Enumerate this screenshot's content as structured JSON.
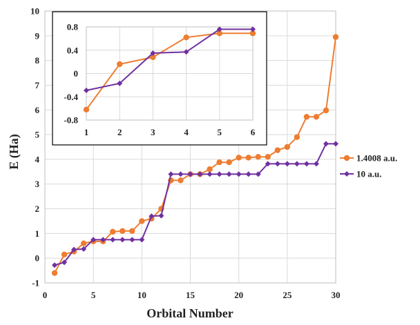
{
  "chart_data": {
    "main": {
      "type": "line",
      "xlabel": "Orbital Number",
      "ylabel": "E (Ha)",
      "xlim": [
        0,
        30
      ],
      "ylim": [
        -1,
        10
      ],
      "xticks": [
        0,
        5,
        10,
        15,
        20,
        25,
        30
      ],
      "yticks": [
        -1,
        0,
        1,
        2,
        3,
        4,
        5,
        6,
        7,
        8,
        9,
        10
      ],
      "grid": true,
      "legend_position": "right",
      "x": [
        1,
        2,
        3,
        4,
        5,
        6,
        7,
        8,
        9,
        10,
        11,
        12,
        13,
        14,
        15,
        16,
        17,
        18,
        19,
        20,
        21,
        22,
        23,
        24,
        25,
        26,
        27,
        28,
        29,
        30
      ],
      "series": [
        {
          "name": "1.4008 a.u.",
          "color": "#ED7D31",
          "marker": "circle",
          "values": [
            -0.6,
            0.15,
            0.27,
            0.6,
            0.68,
            0.68,
            1.07,
            1.1,
            1.1,
            1.5,
            1.6,
            2.0,
            3.15,
            3.15,
            3.4,
            3.4,
            3.6,
            3.88,
            3.88,
            4.07,
            4.07,
            4.1,
            4.1,
            4.37,
            4.5,
            4.9,
            5.72,
            5.72,
            5.98,
            8.95
          ]
        },
        {
          "name": "10 a.u.",
          "color": "#7030A0",
          "marker": "diamond",
          "values": [
            -0.28,
            -0.17,
            0.35,
            0.37,
            0.75,
            0.75,
            0.75,
            0.75,
            0.75,
            0.75,
            1.7,
            1.72,
            3.4,
            3.4,
            3.4,
            3.4,
            3.4,
            3.4,
            3.4,
            3.4,
            3.4,
            3.4,
            3.82,
            3.82,
            3.82,
            3.82,
            3.82,
            3.82,
            4.63,
            4.63
          ]
        }
      ]
    },
    "inset": {
      "type": "line",
      "xlim": [
        1,
        6
      ],
      "ylim": [
        -0.8,
        0.8
      ],
      "xticks": [
        1,
        2,
        3,
        4,
        5,
        6
      ],
      "yticks": [
        -0.8,
        -0.4,
        0,
        0.4,
        0.8
      ],
      "ytick_labels": [
        "-0.8",
        "-0.4",
        "0",
        "0.4",
        "0.8"
      ],
      "grid": true,
      "x": [
        1,
        2,
        3,
        4,
        5,
        6
      ],
      "series": [
        {
          "name": "1.4008 a.u.",
          "color": "#ED7D31",
          "marker": "circle",
          "values": [
            -0.62,
            0.16,
            0.28,
            0.62,
            0.69,
            0.69
          ]
        },
        {
          "name": "10 a.u.",
          "color": "#7030A0",
          "marker": "diamond",
          "values": [
            -0.29,
            -0.17,
            0.35,
            0.37,
            0.76,
            0.76
          ]
        }
      ]
    }
  }
}
